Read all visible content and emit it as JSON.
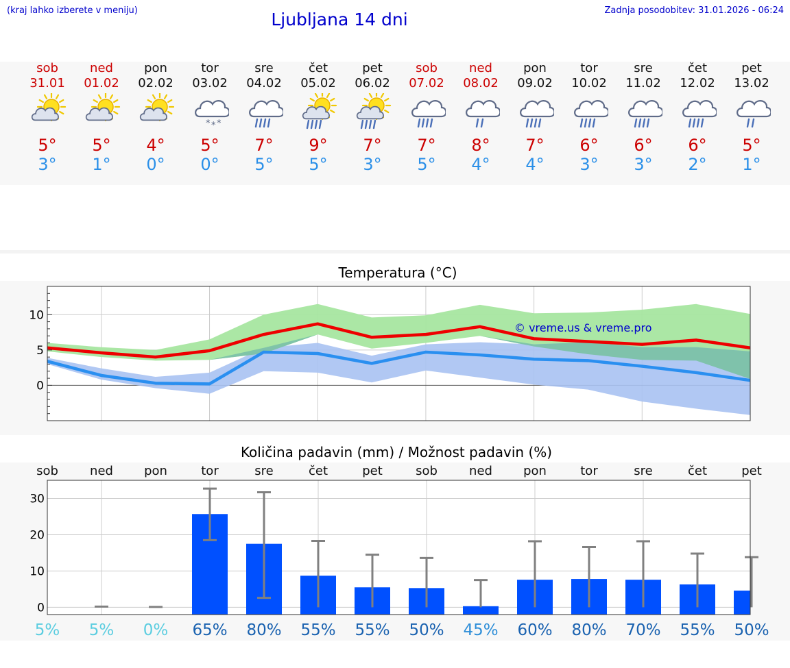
{
  "header": {
    "hint": "(kraj lahko izberete v meniju)",
    "title": "Ljubljana 14 dni",
    "updated": "Zadnja posodobitev: 31.01.2026 - 06:24"
  },
  "days": [
    {
      "name": "sob",
      "date": "31.01",
      "weekend": true,
      "icon": "sun-cloud-icon",
      "tmax": "5°",
      "tmin": "3°"
    },
    {
      "name": "ned",
      "date": "01.02",
      "weekend": true,
      "icon": "sun-cloud-icon",
      "tmax": "5°",
      "tmin": "1°"
    },
    {
      "name": "pon",
      "date": "02.02",
      "weekend": false,
      "icon": "sun-cloud-icon",
      "tmax": "4°",
      "tmin": "0°"
    },
    {
      "name": "tor",
      "date": "03.02",
      "weekend": false,
      "icon": "cloud-snow-icon",
      "tmax": "5°",
      "tmin": "0°"
    },
    {
      "name": "sre",
      "date": "04.02",
      "weekend": false,
      "icon": "cloud-rain-icon",
      "tmax": "7°",
      "tmin": "5°"
    },
    {
      "name": "čet",
      "date": "05.02",
      "weekend": false,
      "icon": "sun-rain-icon",
      "tmax": "9°",
      "tmin": "5°"
    },
    {
      "name": "pet",
      "date": "06.02",
      "weekend": false,
      "icon": "sun-rain-icon",
      "tmax": "7°",
      "tmin": "3°"
    },
    {
      "name": "sob",
      "date": "07.02",
      "weekend": true,
      "icon": "cloud-rain-icon",
      "tmax": "7°",
      "tmin": "5°"
    },
    {
      "name": "ned",
      "date": "08.02",
      "weekend": true,
      "icon": "cloud-drizzle-icon",
      "tmax": "8°",
      "tmin": "4°"
    },
    {
      "name": "pon",
      "date": "09.02",
      "weekend": false,
      "icon": "cloud-rain-icon",
      "tmax": "7°",
      "tmin": "4°"
    },
    {
      "name": "tor",
      "date": "10.02",
      "weekend": false,
      "icon": "cloud-rain-icon",
      "tmax": "6°",
      "tmin": "3°"
    },
    {
      "name": "sre",
      "date": "11.02",
      "weekend": false,
      "icon": "cloud-rain-icon",
      "tmax": "6°",
      "tmin": "3°"
    },
    {
      "name": "čet",
      "date": "12.02",
      "weekend": false,
      "icon": "cloud-rain-icon",
      "tmax": "6°",
      "tmin": "2°"
    },
    {
      "name": "pet",
      "date": "13.02",
      "weekend": false,
      "icon": "cloud-drizzle-icon",
      "tmax": "5°",
      "tmin": "1°"
    }
  ],
  "colors": {
    "max_line": "#ee0000",
    "min_line": "#2a8ff0",
    "max_band": "#a6e6a0",
    "min_band": "#a8c2f2",
    "overlap_band": "#7cc2a8",
    "bar": "#0050ff",
    "error_bar": "#808080",
    "weekend_text": "#cc0000",
    "title_text": "#0000cc"
  },
  "chart_data": [
    {
      "type": "line",
      "title": "Temperatura (°C)",
      "watermark": "© vreme.us & vreme.pro",
      "x": [
        "31.01",
        "01.02",
        "02.02",
        "03.02",
        "04.02",
        "05.02",
        "06.02",
        "07.02",
        "08.02",
        "09.02",
        "10.02",
        "11.02",
        "12.02",
        "13.02"
      ],
      "ylim": [
        -5,
        14
      ],
      "yticks": [
        0,
        5,
        10
      ],
      "grid": true,
      "series": [
        {
          "kind": "max",
          "values": [
            5.3,
            4.6,
            4.0,
            4.9,
            7.2,
            8.7,
            6.8,
            7.2,
            8.3,
            6.6,
            6.2,
            5.8,
            6.4,
            5.3
          ]
        },
        {
          "kind": "max-upper",
          "values": [
            6.0,
            5.4,
            5.0,
            6.5,
            10.0,
            11.5,
            9.6,
            9.9,
            11.4,
            10.2,
            10.3,
            10.7,
            11.5,
            10.1
          ]
        },
        {
          "kind": "max-lower",
          "values": [
            4.8,
            4.0,
            3.5,
            3.6,
            4.5,
            7.2,
            5.2,
            6.0,
            7.0,
            5.5,
            4.4,
            3.6,
            3.5,
            0.9
          ]
        },
        {
          "kind": "min",
          "values": [
            3.4,
            1.4,
            0.3,
            0.2,
            4.7,
            4.5,
            3.1,
            4.7,
            4.3,
            3.7,
            3.5,
            2.7,
            1.8,
            0.7
          ]
        },
        {
          "kind": "min-upper",
          "values": [
            3.9,
            2.4,
            1.2,
            1.8,
            5.3,
            6.0,
            4.2,
            5.8,
            6.1,
            5.8,
            6.1,
            5.4,
            5.4,
            4.8
          ]
        },
        {
          "kind": "min-lower",
          "values": [
            3.0,
            0.8,
            -0.4,
            -1.2,
            2.0,
            1.8,
            0.4,
            2.1,
            1.1,
            0.1,
            -0.6,
            -2.3,
            -3.3,
            -4.2
          ]
        }
      ]
    },
    {
      "type": "bar",
      "title": "Količina padavin (mm) / Možnost padavin (%)",
      "categories": [
        "sob",
        "ned",
        "pon",
        "tor",
        "sre",
        "čet",
        "pet",
        "sob",
        "ned",
        "pon",
        "tor",
        "sre",
        "čet",
        "pet"
      ],
      "values": [
        0,
        0,
        0,
        25.7,
        17.5,
        8.7,
        5.5,
        5.3,
        0.3,
        7.6,
        7.8,
        7.6,
        6.3,
        4.6
      ],
      "error_low": [
        0,
        0,
        0,
        18.5,
        2.6,
        0,
        0,
        0,
        0,
        0,
        0,
        0,
        0,
        0
      ],
      "error_high": [
        0,
        0.2,
        0.1,
        32.7,
        31.7,
        18.3,
        14.5,
        13.6,
        7.5,
        18.2,
        16.6,
        18.2,
        14.8,
        13.8
      ],
      "ylim": [
        -2,
        35
      ],
      "yticks": [
        0,
        10,
        20,
        30
      ],
      "grid": true,
      "probabilities": [
        "5%",
        "5%",
        "0%",
        "65%",
        "80%",
        "55%",
        "55%",
        "50%",
        "45%",
        "60%",
        "80%",
        "70%",
        "55%",
        "50%"
      ],
      "probability_values": [
        5,
        5,
        0,
        65,
        80,
        55,
        55,
        50,
        45,
        60,
        80,
        70,
        55,
        50
      ]
    }
  ]
}
